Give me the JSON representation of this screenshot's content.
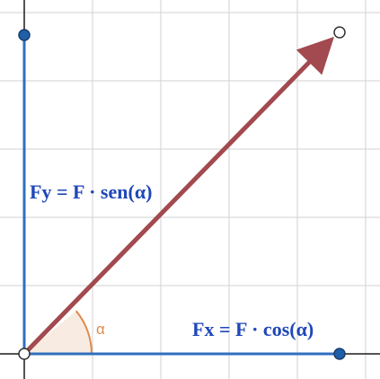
{
  "labels": {
    "fy_formula": "Fy = F · sen(α)",
    "fx_formula": "Fx = F · cos(α)",
    "angle_symbol": "α"
  },
  "colors": {
    "grid": "#d2d2d2",
    "axis": "#1c1c1c",
    "component": "#2f6fbf",
    "vector": "#a24a4f",
    "formula_text": "#1f47b8",
    "angle_arc": "#e08a4a",
    "angle_fill": "#f8ece2",
    "point_fill": "#1f5fa8",
    "point_stroke": "#1a3c6e"
  }
}
